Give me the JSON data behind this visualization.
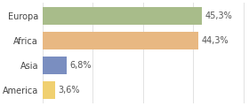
{
  "categories": [
    "Europa",
    "Africa",
    "Asia",
    "America"
  ],
  "values": [
    45.3,
    44.3,
    6.8,
    3.6
  ],
  "labels": [
    "45,3%",
    "44,3%",
    "6,8%",
    "3,6%"
  ],
  "bar_colors": [
    "#a8bc8a",
    "#e8b882",
    "#7a8ec0",
    "#f0d070"
  ],
  "background_color": "#ffffff",
  "xlim": [
    0,
    58
  ],
  "bar_height": 0.72,
  "label_fontsize": 7.0,
  "tick_fontsize": 7.0,
  "figsize": [
    2.8,
    1.2
  ],
  "dpi": 100
}
